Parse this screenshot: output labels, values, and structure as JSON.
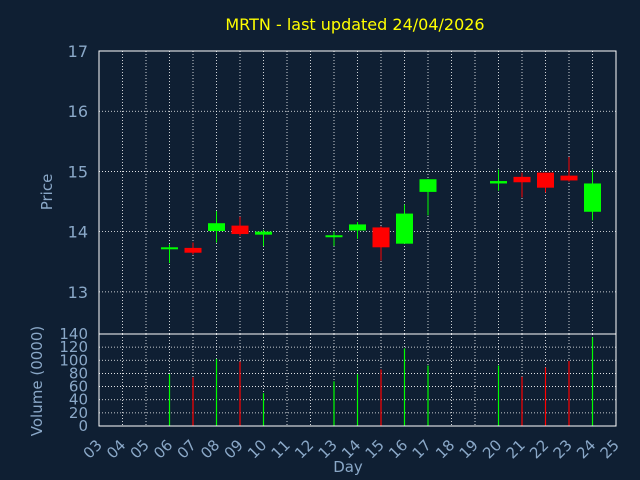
{
  "colors": {
    "background": "#0f1f33",
    "frame": "#ffffff",
    "grid": "#ffffff",
    "title": "#ffff00",
    "axis_text": "#8aa8c8",
    "up": "#00ff00",
    "down": "#ff0000"
  },
  "chart_data": [
    {
      "type": "candlestick",
      "title": "MRTN - last updated 24/04/2026",
      "ylabel": "Price",
      "ylim": [
        12.3,
        17
      ],
      "y_ticks": [
        "13",
        "14",
        "15",
        "16",
        "17"
      ],
      "grid": true,
      "candles": [
        {
          "day": "06",
          "open": 13.74,
          "high": 13.79,
          "low": 13.48,
          "close": 13.74
        },
        {
          "day": "07",
          "open": 13.73,
          "high": 13.82,
          "low": 13.62,
          "close": 13.65
        },
        {
          "day": "08",
          "open": 14.01,
          "high": 14.34,
          "low": 13.82,
          "close": 14.14
        },
        {
          "day": "09",
          "open": 14.1,
          "high": 14.25,
          "low": 13.93,
          "close": 13.96
        },
        {
          "day": "10",
          "open": 13.95,
          "high": 14.03,
          "low": 13.76,
          "close": 14.0
        },
        {
          "day": "13",
          "open": 13.92,
          "high": 14.0,
          "low": 13.76,
          "close": 13.94
        },
        {
          "day": "14",
          "open": 14.02,
          "high": 14.16,
          "low": 13.88,
          "close": 14.12
        },
        {
          "day": "15",
          "open": 14.07,
          "high": 14.09,
          "low": 13.52,
          "close": 13.74
        },
        {
          "day": "16",
          "open": 13.8,
          "high": 14.45,
          "low": 13.8,
          "close": 14.3
        },
        {
          "day": "17",
          "open": 14.66,
          "high": 14.87,
          "low": 14.27,
          "close": 14.87
        },
        {
          "day": "20",
          "open": 14.8,
          "high": 15.03,
          "low": 14.68,
          "close": 14.84
        },
        {
          "day": "21",
          "open": 14.91,
          "high": 14.98,
          "low": 14.57,
          "close": 14.82
        },
        {
          "day": "22",
          "open": 14.98,
          "high": 14.98,
          "low": 14.65,
          "close": 14.73
        },
        {
          "day": "23",
          "open": 14.93,
          "high": 15.24,
          "low": 14.83,
          "close": 14.85
        },
        {
          "day": "24",
          "open": 14.33,
          "high": 15.03,
          "low": 14.19,
          "close": 14.8
        }
      ]
    },
    {
      "type": "bar",
      "ylabel": "Volume (0000)",
      "xlabel": "Day",
      "ylim": [
        0,
        140
      ],
      "y_ticks": [
        "0",
        "20",
        "40",
        "60",
        "80",
        "100",
        "120",
        "140"
      ],
      "categories": [
        "03",
        "04",
        "05",
        "06",
        "07",
        "08",
        "09",
        "10",
        "11",
        "12",
        "13",
        "14",
        "15",
        "16",
        "17",
        "18",
        "19",
        "20",
        "21",
        "22",
        "23",
        "24",
        "25"
      ],
      "grid": true,
      "bars": [
        {
          "day": "06",
          "value": 79,
          "dir": "up"
        },
        {
          "day": "07",
          "value": 74,
          "dir": "down"
        },
        {
          "day": "08",
          "value": 102,
          "dir": "up"
        },
        {
          "day": "09",
          "value": 98,
          "dir": "down"
        },
        {
          "day": "10",
          "value": 50,
          "dir": "up"
        },
        {
          "day": "13",
          "value": 68,
          "dir": "up"
        },
        {
          "day": "14",
          "value": 79,
          "dir": "up"
        },
        {
          "day": "15",
          "value": 86,
          "dir": "down"
        },
        {
          "day": "16",
          "value": 118,
          "dir": "up"
        },
        {
          "day": "17",
          "value": 92,
          "dir": "up"
        },
        {
          "day": "20",
          "value": 92,
          "dir": "up"
        },
        {
          "day": "21",
          "value": 75,
          "dir": "down"
        },
        {
          "day": "22",
          "value": 89,
          "dir": "down"
        },
        {
          "day": "23",
          "value": 99,
          "dir": "down"
        },
        {
          "day": "24",
          "value": 135,
          "dir": "up"
        }
      ]
    }
  ]
}
